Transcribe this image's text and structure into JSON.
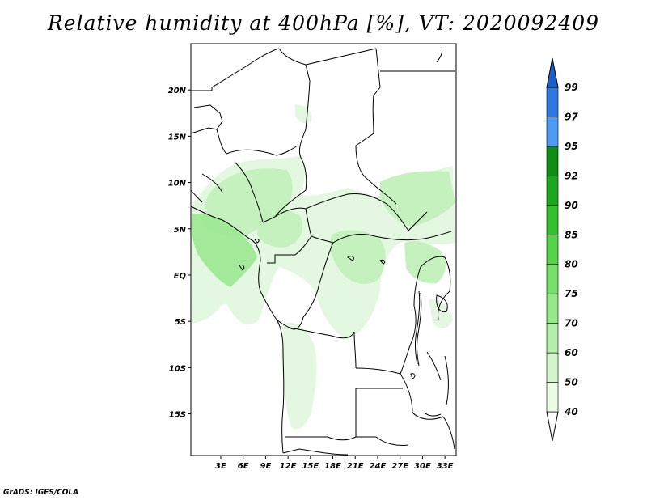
{
  "title": "Relative humidity at 400hPa [%], VT: 2020092409",
  "credit": "GrADS: IGES/COLA",
  "map": {
    "lon_range": [
      -1,
      34.5
    ],
    "lat_range": [
      -19.5,
      25
    ],
    "lat_ticks": [
      {
        "value": 20,
        "label": "20N"
      },
      {
        "value": 15,
        "label": "15N"
      },
      {
        "value": 10,
        "label": "10N"
      },
      {
        "value": 5,
        "label": "5N"
      },
      {
        "value": 0,
        "label": "EQ"
      },
      {
        "value": -5,
        "label": "5S"
      },
      {
        "value": -10,
        "label": "10S"
      },
      {
        "value": -15,
        "label": "15S"
      }
    ],
    "lon_ticks": [
      {
        "value": 3,
        "label": "3E"
      },
      {
        "value": 6,
        "label": "6E"
      },
      {
        "value": 9,
        "label": "9E"
      },
      {
        "value": 12,
        "label": "12E"
      },
      {
        "value": 15,
        "label": "15E"
      },
      {
        "value": 18,
        "label": "18E"
      },
      {
        "value": 21,
        "label": "21E"
      },
      {
        "value": 24,
        "label": "24E"
      },
      {
        "value": 27,
        "label": "27E"
      },
      {
        "value": 30,
        "label": "30E"
      },
      {
        "value": 33,
        "label": "33E"
      }
    ]
  },
  "colorbar": {
    "levels": [
      "40",
      "50",
      "60",
      "70",
      "75",
      "80",
      "85",
      "90",
      "92",
      "95",
      "97",
      "99"
    ],
    "colors": [
      "#ffffff",
      "#eafbe6",
      "#d2f5cc",
      "#b4efab",
      "#96e88a",
      "#78e06a",
      "#55d44a",
      "#35c030",
      "#1ea620",
      "#0f8c14",
      "#4e9cf0",
      "#2e78e0",
      "#1c5ec8"
    ]
  },
  "humidity_colors": {
    "light": "#e3f8df",
    "mid": "#c2f0ba",
    "high": "#9ee896",
    "peak": "#7fe07a"
  }
}
